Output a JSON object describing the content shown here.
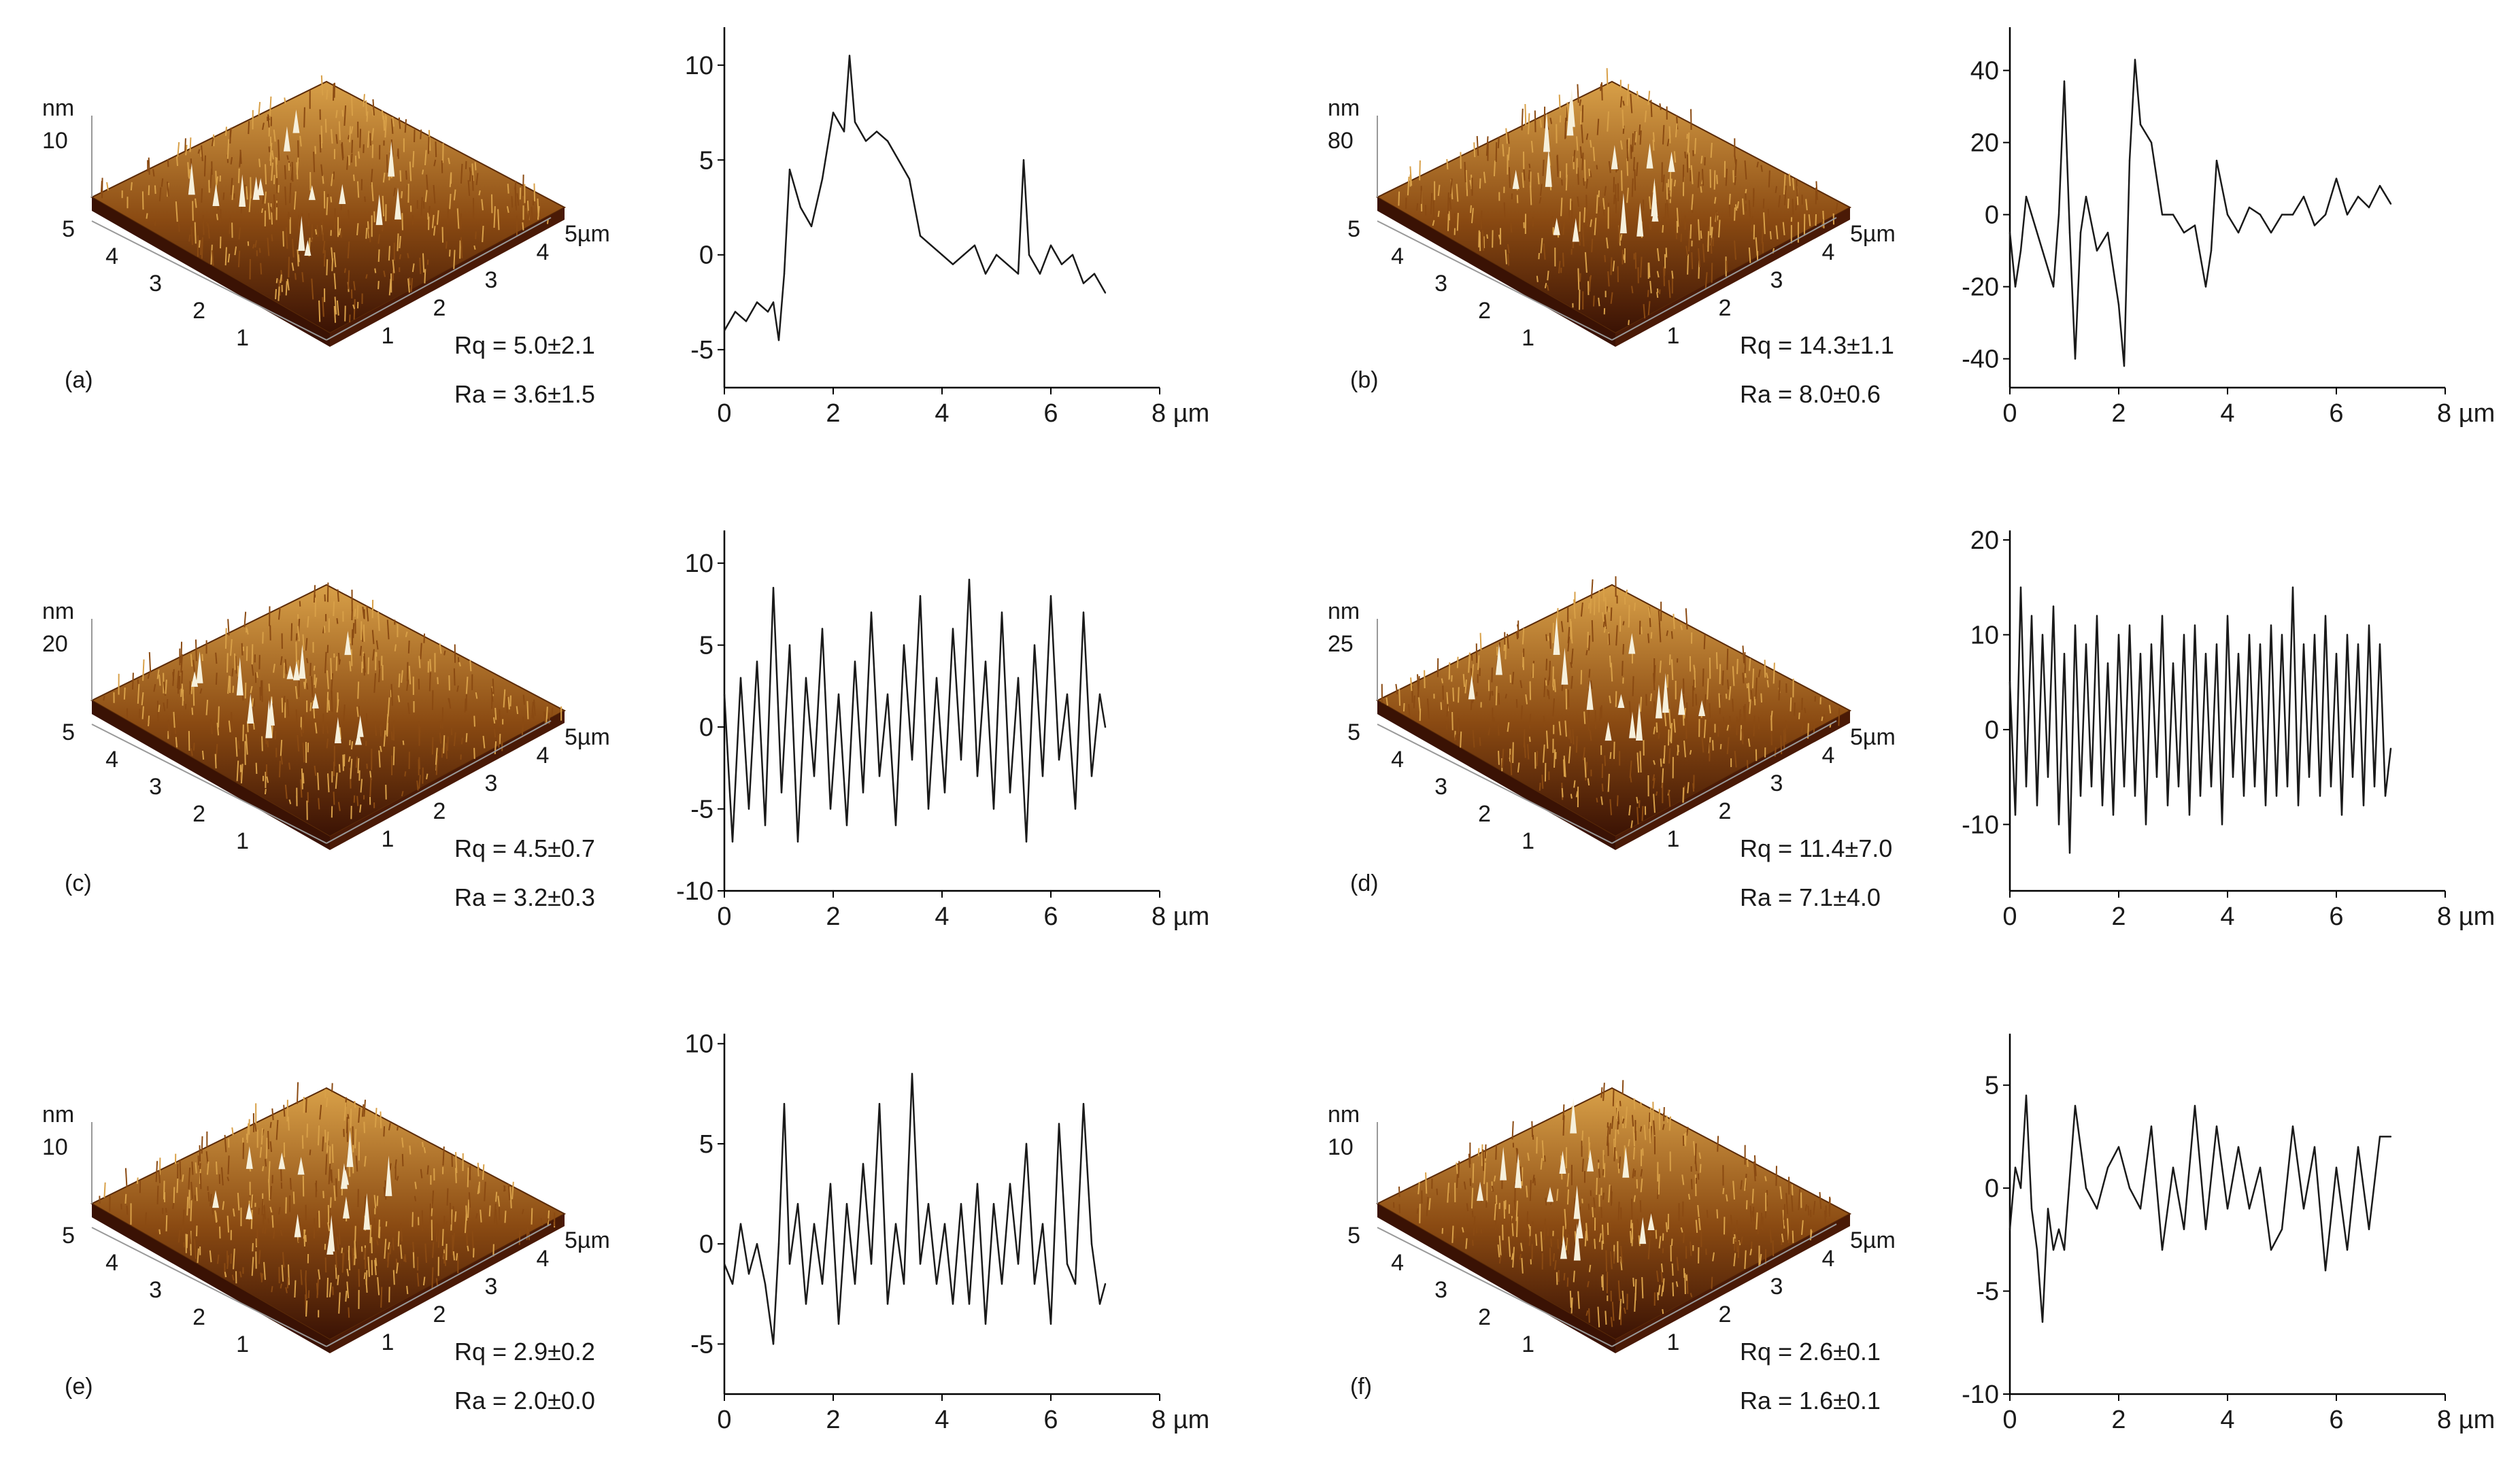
{
  "figure": {
    "x_unit": "µm",
    "afm_z_unit": "nm",
    "afm_x_axis_unit": "5µm",
    "afm_x_ticks": [
      "1",
      "2",
      "3",
      "4"
    ],
    "afm_y_ticks": [
      "1",
      "2",
      "3",
      "4",
      "5"
    ],
    "colors": {
      "afm_low": "#3a1204",
      "afm_mid": "#8a4a12",
      "afm_high": "#d8a048",
      "afm_peak": "#f6f0dc",
      "line": "#1a1a1a"
    }
  },
  "panels": [
    {
      "label": "(a)",
      "z_max": "10",
      "rq": "Rq = 5.0±2.1",
      "ra": "Ra = 3.6±1.5"
    },
    {
      "label": "(b)",
      "z_max": "80",
      "rq": "Rq = 14.3±1.1",
      "ra": "Ra = 8.0±0.6"
    },
    {
      "label": "(c)",
      "z_max": "20",
      "rq": "Rq = 4.5±0.7",
      "ra": "Ra = 3.2±0.3"
    },
    {
      "label": "(d)",
      "z_max": "25",
      "rq": "Rq = 11.4±7.0",
      "ra": "Ra = 7.1±4.0"
    },
    {
      "label": "(e)",
      "z_max": "10",
      "rq": "Rq = 2.9±0.2",
      "ra": "Ra = 2.0±0.0"
    },
    {
      "label": "(f)",
      "z_max": "10",
      "rq": "Rq = 2.6±0.1",
      "ra": "Ra = 1.6±0.1"
    }
  ],
  "chart_data": [
    {
      "panel": "a",
      "type": "line",
      "xlim": [
        0,
        8
      ],
      "ylim": [
        -7,
        12
      ],
      "x_ticks": [
        0,
        2,
        4,
        6,
        8
      ],
      "y_ticks": [
        -5,
        0,
        5,
        10
      ],
      "x_tick_labels": [
        "0",
        "2",
        "4",
        "6",
        "8 µm"
      ],
      "y_tick_labels": [
        "-5",
        "0",
        "5",
        "10"
      ],
      "series": [
        {
          "x": [
            0,
            0.2,
            0.4,
            0.6,
            0.8,
            0.9,
            1.0,
            1.1,
            1.2,
            1.4,
            1.6,
            1.8,
            2.0,
            2.2,
            2.3,
            2.4,
            2.6,
            2.8,
            3.0,
            3.2,
            3.4,
            3.6,
            3.8,
            4.0,
            4.2,
            4.4,
            4.6,
            4.8,
            5.0,
            5.2,
            5.4,
            5.5,
            5.6,
            5.8,
            6.0,
            6.2,
            6.4,
            6.6,
            6.8,
            7.0
          ],
          "y": [
            -4,
            -3,
            -3.5,
            -2.5,
            -3,
            -2.5,
            -4.5,
            -1,
            4.5,
            2.5,
            1.5,
            4,
            7.5,
            6.5,
            10.5,
            7,
            6,
            6.5,
            6,
            5,
            4,
            1,
            0.5,
            0,
            -0.5,
            0,
            0.5,
            -1,
            0,
            -0.5,
            -1,
            5,
            0,
            -1,
            0.5,
            -0.5,
            0,
            -1.5,
            -1,
            -2
          ]
        }
      ]
    },
    {
      "panel": "b",
      "type": "line",
      "xlim": [
        0,
        8
      ],
      "ylim": [
        -48,
        52
      ],
      "x_ticks": [
        0,
        2,
        4,
        6,
        8
      ],
      "y_ticks": [
        -40,
        -20,
        0,
        20,
        40
      ],
      "x_tick_labels": [
        "0",
        "2",
        "4",
        "6",
        "8 µm"
      ],
      "y_tick_labels": [
        "-40",
        "-20",
        "0",
        "20",
        "40"
      ],
      "series": [
        {
          "x": [
            0,
            0.1,
            0.2,
            0.3,
            0.4,
            0.6,
            0.8,
            0.9,
            1.0,
            1.1,
            1.2,
            1.3,
            1.4,
            1.6,
            1.8,
            2.0,
            2.1,
            2.2,
            2.3,
            2.4,
            2.6,
            2.8,
            3.0,
            3.2,
            3.4,
            3.6,
            3.7,
            3.8,
            4.0,
            4.2,
            4.4,
            4.6,
            4.8,
            5.0,
            5.2,
            5.4,
            5.6,
            5.8,
            6.0,
            6.2,
            6.4,
            6.6,
            6.8,
            7.0
          ],
          "y": [
            -5,
            -20,
            -10,
            5,
            0,
            -10,
            -20,
            0,
            37,
            -5,
            -40,
            -5,
            5,
            -10,
            -5,
            -25,
            -42,
            15,
            43,
            25,
            20,
            0,
            0,
            -5,
            -3,
            -20,
            -10,
            15,
            0,
            -5,
            2,
            0,
            -5,
            0,
            0,
            5,
            -3,
            0,
            10,
            0,
            5,
            2,
            8,
            3
          ]
        }
      ]
    },
    {
      "panel": "c",
      "type": "line",
      "xlim": [
        0,
        8
      ],
      "ylim": [
        -10,
        12
      ],
      "x_ticks": [
        0,
        2,
        4,
        6,
        8
      ],
      "y_ticks": [
        -10,
        -5,
        0,
        5,
        10
      ],
      "x_tick_labels": [
        "0",
        "2",
        "4",
        "6",
        "8 µm"
      ],
      "y_tick_labels": [
        "-10",
        "-5",
        "0",
        "5",
        "10"
      ],
      "series": [
        {
          "x": [
            0,
            0.15,
            0.3,
            0.45,
            0.6,
            0.75,
            0.9,
            1.05,
            1.2,
            1.35,
            1.5,
            1.65,
            1.8,
            1.95,
            2.1,
            2.25,
            2.4,
            2.55,
            2.7,
            2.85,
            3.0,
            3.15,
            3.3,
            3.45,
            3.6,
            3.75,
            3.9,
            4.05,
            4.2,
            4.35,
            4.5,
            4.65,
            4.8,
            4.95,
            5.1,
            5.25,
            5.4,
            5.55,
            5.7,
            5.85,
            6.0,
            6.15,
            6.3,
            6.45,
            6.6,
            6.75,
            6.9,
            7.0
          ],
          "y": [
            2,
            -7,
            3,
            -5,
            4,
            -6,
            8.5,
            -4,
            5,
            -7,
            3,
            -3,
            6,
            -5,
            2,
            -6,
            4,
            -4,
            7,
            -3,
            2,
            -6,
            5,
            -2,
            8,
            -5,
            3,
            -4,
            6,
            -2,
            9,
            -3,
            4,
            -5,
            7,
            -4,
            3,
            -7,
            5,
            -3,
            8,
            -2,
            2,
            -5,
            7,
            -3,
            2,
            0
          ]
        }
      ]
    },
    {
      "panel": "d",
      "type": "line",
      "xlim": [
        0,
        8
      ],
      "ylim": [
        -17,
        21
      ],
      "x_ticks": [
        0,
        2,
        4,
        6,
        8
      ],
      "y_ticks": [
        -10,
        0,
        10,
        20
      ],
      "x_tick_labels": [
        "0",
        "2",
        "4",
        "6",
        "8 µm"
      ],
      "y_tick_labels": [
        "-10",
        "0",
        "10",
        "20"
      ],
      "series": [
        {
          "x": [
            0,
            0.1,
            0.2,
            0.3,
            0.4,
            0.5,
            0.6,
            0.7,
            0.8,
            0.9,
            1.0,
            1.1,
            1.2,
            1.3,
            1.4,
            1.5,
            1.6,
            1.7,
            1.8,
            1.9,
            2.0,
            2.1,
            2.2,
            2.3,
            2.4,
            2.5,
            2.6,
            2.7,
            2.8,
            2.9,
            3.0,
            3.1,
            3.2,
            3.3,
            3.4,
            3.5,
            3.6,
            3.7,
            3.8,
            3.9,
            4.0,
            4.1,
            4.2,
            4.3,
            4.4,
            4.5,
            4.6,
            4.7,
            4.8,
            4.9,
            5.0,
            5.1,
            5.2,
            5.3,
            5.4,
            5.5,
            5.6,
            5.7,
            5.8,
            5.9,
            6.0,
            6.1,
            6.2,
            6.3,
            6.4,
            6.5,
            6.6,
            6.7,
            6.8,
            6.9,
            7.0
          ],
          "y": [
            5,
            -9,
            15,
            -6,
            12,
            -8,
            10,
            -5,
            13,
            -10,
            8,
            -13,
            11,
            -7,
            9,
            -6,
            12,
            -8,
            7,
            -9,
            10,
            -6,
            11,
            -7,
            8,
            -10,
            9,
            -5,
            12,
            -8,
            7,
            -6,
            10,
            -9,
            11,
            -7,
            8,
            -6,
            9,
            -10,
            12,
            -5,
            8,
            -7,
            10,
            -6,
            9,
            -8,
            11,
            -7,
            10,
            -6,
            15,
            -8,
            9,
            -5,
            10,
            -7,
            12,
            -6,
            8,
            -9,
            10,
            -5,
            9,
            -8,
            11,
            -6,
            9,
            -7,
            -2
          ]
        }
      ]
    },
    {
      "panel": "e",
      "type": "line",
      "xlim": [
        0,
        8
      ],
      "ylim": [
        -7.5,
        10.5
      ],
      "x_ticks": [
        0,
        2,
        4,
        6,
        8
      ],
      "y_ticks": [
        -5,
        0,
        5,
        10
      ],
      "x_tick_labels": [
        "0",
        "2",
        "4",
        "6",
        "8 µm"
      ],
      "y_tick_labels": [
        "-5",
        "0",
        "5",
        "10"
      ],
      "series": [
        {
          "x": [
            0,
            0.15,
            0.3,
            0.45,
            0.6,
            0.75,
            0.9,
            1.0,
            1.1,
            1.2,
            1.35,
            1.5,
            1.65,
            1.8,
            1.95,
            2.1,
            2.25,
            2.4,
            2.55,
            2.7,
            2.85,
            3.0,
            3.15,
            3.3,
            3.45,
            3.6,
            3.75,
            3.9,
            4.05,
            4.2,
            4.35,
            4.5,
            4.65,
            4.8,
            4.95,
            5.1,
            5.25,
            5.4,
            5.55,
            5.7,
            5.85,
            6.0,
            6.15,
            6.3,
            6.45,
            6.6,
            6.75,
            6.9,
            7.0
          ],
          "y": [
            -1,
            -2,
            1,
            -1.5,
            0,
            -2,
            -5,
            0,
            7,
            -1,
            2,
            -3,
            1,
            -2,
            3,
            -4,
            2,
            -2,
            4,
            -1,
            7,
            -3,
            1,
            -2,
            8.5,
            -1,
            2,
            -2,
            1,
            -3,
            2,
            -3,
            3,
            -4,
            2,
            -2,
            3,
            -1,
            5,
            -2,
            1,
            -4,
            6,
            -1,
            -2,
            7,
            0,
            -3,
            -2
          ]
        }
      ]
    },
    {
      "panel": "f",
      "type": "line",
      "xlim": [
        0,
        8
      ],
      "ylim": [
        -10,
        7.5
      ],
      "x_ticks": [
        0,
        2,
        4,
        6,
        8
      ],
      "y_ticks": [
        -10,
        -5,
        0,
        5
      ],
      "x_tick_labels": [
        "0",
        "2",
        "4",
        "6",
        "8 µm"
      ],
      "y_tick_labels": [
        "-10",
        "-5",
        "0",
        "5"
      ],
      "series": [
        {
          "x": [
            0,
            0.1,
            0.2,
            0.3,
            0.4,
            0.5,
            0.6,
            0.7,
            0.8,
            0.9,
            1.0,
            1.2,
            1.4,
            1.6,
            1.8,
            2.0,
            2.2,
            2.4,
            2.6,
            2.8,
            3.0,
            3.2,
            3.4,
            3.6,
            3.8,
            4.0,
            4.2,
            4.4,
            4.6,
            4.8,
            5.0,
            5.2,
            5.4,
            5.6,
            5.8,
            6.0,
            6.2,
            6.4,
            6.6,
            6.8,
            7.0
          ],
          "y": [
            -2,
            1,
            0,
            4.5,
            -1,
            -3,
            -6.5,
            -1,
            -3,
            -2,
            -3,
            4,
            0,
            -1,
            1,
            2,
            0,
            -1,
            3,
            -3,
            1,
            -2,
            4,
            -2,
            3,
            -1,
            2,
            -1,
            1,
            -3,
            -2,
            3,
            -1,
            2,
            -4,
            1,
            -3,
            2,
            -2,
            2.5,
            2.5
          ]
        }
      ]
    }
  ]
}
